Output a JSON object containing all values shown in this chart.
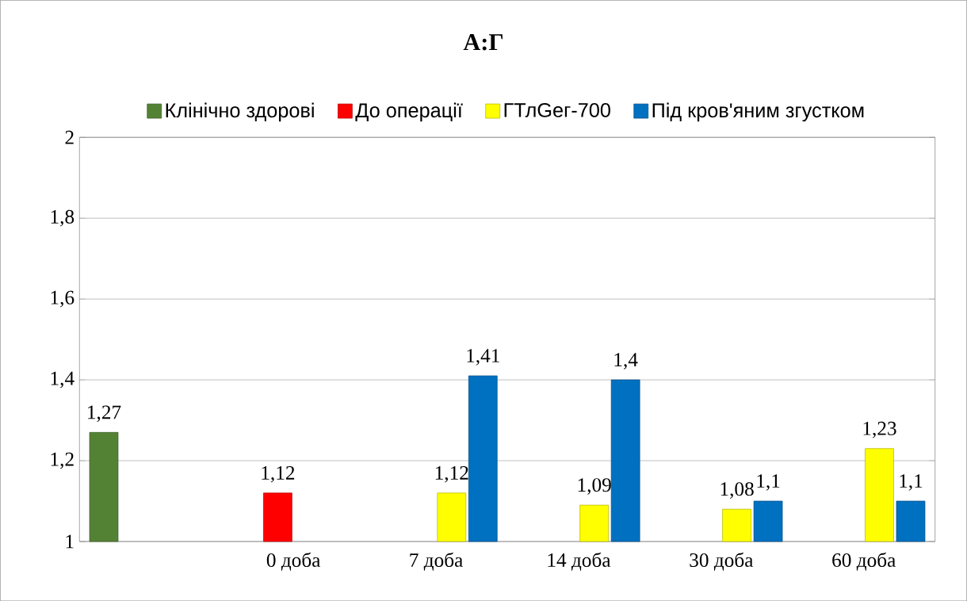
{
  "chart_data": {
    "type": "bar",
    "title": "А:Г",
    "categories": [
      null,
      "0 доба",
      "7 доба",
      "14 доба",
      "30 доба",
      "60 доба"
    ],
    "series": [
      {
        "name": "Клінічно здорові",
        "color": "#548235",
        "values": [
          1.27,
          null,
          null,
          null,
          null,
          null
        ],
        "value_labels": [
          "1,27",
          null,
          null,
          null,
          null,
          null
        ]
      },
      {
        "name": "До операції",
        "color": "#ff0000",
        "values": [
          null,
          1.12,
          null,
          null,
          null,
          null
        ],
        "value_labels": [
          null,
          "1,12",
          null,
          null,
          null,
          null
        ]
      },
      {
        "name": "ГТлGeг-700",
        "color": "#ffff00",
        "values": [
          null,
          null,
          1.12,
          1.09,
          1.08,
          1.23
        ],
        "value_labels": [
          null,
          null,
          "1,12",
          "1,09",
          "1,08",
          "1,23"
        ]
      },
      {
        "name": "Під кров'яним згустком",
        "color": "#0070c0",
        "values": [
          null,
          null,
          1.41,
          1.4,
          1.1,
          1.1
        ],
        "value_labels": [
          null,
          null,
          "1,41",
          "1,4",
          "1,1",
          "1,1"
        ]
      }
    ],
    "ylim": [
      1,
      2
    ],
    "yticks": [
      1,
      {
        "value": 1.2,
        "label": "1,2"
      },
      {
        "value": 1.4,
        "label": "1,4"
      },
      {
        "value": 1.6,
        "label": "1,6"
      },
      {
        "value": 1.8,
        "label": "1,8"
      },
      2
    ],
    "grid": "y",
    "legend": "top"
  }
}
